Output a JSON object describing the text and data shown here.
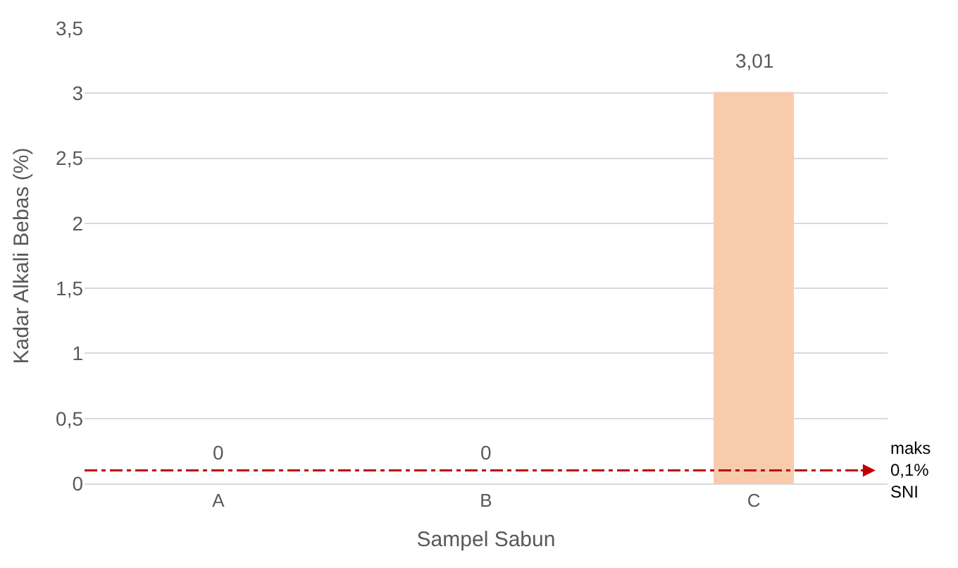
{
  "chart_data": {
    "type": "bar",
    "xlabel": "Sampel Sabun",
    "ylabel": "Kadar Alkali Bebas (%)",
    "categories": [
      "A",
      "B",
      "C"
    ],
    "values": [
      0,
      0,
      3.01
    ],
    "value_labels": [
      "0",
      "0",
      "3,01"
    ],
    "color": "#f8cbad",
    "ylim": [
      0,
      3.5
    ],
    "yticks": [
      0,
      {
        "value": 0.5,
        "label": "0,5"
      },
      1,
      {
        "value": 1.5,
        "label": "1,5"
      },
      2,
      {
        "value": 2.5,
        "label": "2,5"
      },
      3,
      {
        "value": 3.5,
        "label": "3,5"
      }
    ],
    "grid": "y",
    "ref_lines": [
      {
        "axis": "y",
        "value": 0.1,
        "label": "maks\n0,1%\nSNI",
        "color": "#c00000",
        "line_style": "dashdot"
      }
    ]
  }
}
